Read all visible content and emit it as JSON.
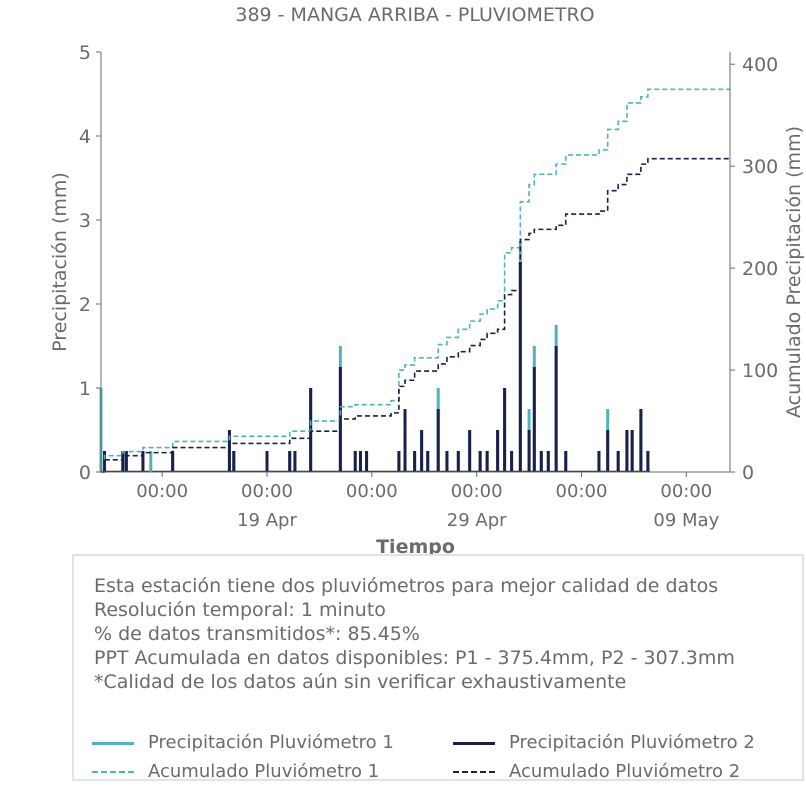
{
  "title": "389 - MANGA ARRIBA - PLUVIOMETRO",
  "colors": {
    "p1": "#4db3bf",
    "p2": "#1c1f4a",
    "axis": "#6b6b6b",
    "text": "#6b6b6b"
  },
  "info": {
    "lines": [
      "Esta estación tiene dos pluviómetros para mejor calidad de datos",
      "Resolución temporal: 1 minuto",
      "% de datos transmitidos*: 85.45%",
      "PPT Acumulada en datos disponibles: P1 - 375.4mm, P2 - 307.3mm",
      "*Calidad de los datos aún sin verificar exhaustivamente"
    ]
  },
  "legend": {
    "items": [
      {
        "label": "Precipitación Pluviómetro 1",
        "color": "#4db3bf",
        "style": "solid"
      },
      {
        "label": "Precipitación Pluviómetro 2",
        "color": "#1c1f4a",
        "style": "solid"
      },
      {
        "label": "Acumulado Pluviómetro 1",
        "color": "#4db3bf",
        "style": "dashed"
      },
      {
        "label": "Acumulado Pluviómetro 2",
        "color": "#1c1f4a",
        "style": "dashed"
      }
    ]
  },
  "chart_data": {
    "type": "line",
    "title": "389 - MANGA ARRIBA - PLUVIOMETRO",
    "xlabel": "Tiempo",
    "ylabel": "Precipitación (mm)",
    "y2label": "Acumulado Precipitación (mm)",
    "xlim": [
      "2026-04-11T02:00",
      "2026-05-11T02:00"
    ],
    "ylim": [
      0,
      5
    ],
    "y2lim": [
      0,
      412
    ],
    "x_ticks": [
      {
        "at": "2026-04-14T00:00",
        "major": "00:00",
        "minor": ""
      },
      {
        "at": "2026-04-19T00:00",
        "major": "00:00",
        "minor": "19 Apr"
      },
      {
        "at": "2026-04-24T00:00",
        "major": "00:00",
        "minor": ""
      },
      {
        "at": "2026-04-29T00:00",
        "major": "00:00",
        "minor": "29 Apr"
      },
      {
        "at": "2026-05-04T00:00",
        "major": "00:00",
        "minor": ""
      },
      {
        "at": "2026-05-09T00:00",
        "major": "00:00",
        "minor": "09 May"
      }
    ],
    "y_ticks": [
      0,
      1,
      2,
      3,
      4,
      5
    ],
    "y2_ticks": [
      0,
      100,
      200,
      300,
      400
    ],
    "grid": false,
    "legend_position": "bottom",
    "series": [
      {
        "name": "Precipitación Pluviómetro 1",
        "axis": "left",
        "style": "bars",
        "points": [
          [
            "2026-04-11T02:00",
            1.0
          ],
          [
            "2026-04-11T06:00",
            0.25
          ],
          [
            "2026-04-12T03:00",
            0.25
          ],
          [
            "2026-04-12T07:00",
            0.25
          ],
          [
            "2026-04-13T02:00",
            0.25
          ],
          [
            "2026-04-13T11:00",
            0.25
          ],
          [
            "2026-04-14T12:00",
            0.25
          ],
          [
            "2026-04-17T05:00",
            0.5
          ],
          [
            "2026-04-17T10:00",
            0.25
          ],
          [
            "2026-04-19T00:00",
            0.25
          ],
          [
            "2026-04-20T02:00",
            0.25
          ],
          [
            "2026-04-20T08:00",
            0.25
          ],
          [
            "2026-04-21T02:00",
            1.0
          ],
          [
            "2026-04-22T12:00",
            1.5
          ],
          [
            "2026-04-23T05:00",
            0.25
          ],
          [
            "2026-04-23T11:00",
            0.25
          ],
          [
            "2026-04-23T18:00",
            0.25
          ],
          [
            "2026-04-25T07:00",
            0.25
          ],
          [
            "2026-04-25T14:00",
            0.5
          ],
          [
            "2026-04-26T01:00",
            0.25
          ],
          [
            "2026-04-26T09:00",
            0.5
          ],
          [
            "2026-04-26T16:00",
            0.25
          ],
          [
            "2026-04-27T04:00",
            1.0
          ],
          [
            "2026-04-27T14:00",
            0.25
          ],
          [
            "2026-04-28T03:00",
            0.25
          ],
          [
            "2026-04-28T16:00",
            0.5
          ],
          [
            "2026-04-29T04:00",
            0.25
          ],
          [
            "2026-04-29T12:00",
            0.25
          ],
          [
            "2026-04-30T00:00",
            0.5
          ],
          [
            "2026-04-30T08:00",
            1.0
          ],
          [
            "2026-04-30T16:00",
            0.25
          ],
          [
            "2026-05-01T02:00",
            2.75
          ],
          [
            "2026-05-01T12:00",
            0.75
          ],
          [
            "2026-05-01T18:00",
            1.5
          ],
          [
            "2026-05-02T02:00",
            0.25
          ],
          [
            "2026-05-02T10:00",
            0.25
          ],
          [
            "2026-05-02T19:00",
            1.75
          ],
          [
            "2026-05-03T06:00",
            0.25
          ],
          [
            "2026-05-04T20:00",
            0.25
          ],
          [
            "2026-05-05T06:00",
            0.75
          ],
          [
            "2026-05-05T18:00",
            0.25
          ],
          [
            "2026-05-06T04:00",
            0.5
          ],
          [
            "2026-05-06T10:00",
            0.5
          ],
          [
            "2026-05-06T20:00",
            0.75
          ],
          [
            "2026-05-07T04:00",
            0.25
          ]
        ]
      },
      {
        "name": "Precipitación Pluviómetro 2",
        "axis": "left",
        "style": "bars",
        "points": [
          [
            "2026-04-11T06:00",
            0.25
          ],
          [
            "2026-04-12T03:00",
            0.25
          ],
          [
            "2026-04-12T07:00",
            0.25
          ],
          [
            "2026-04-13T02:00",
            0.25
          ],
          [
            "2026-04-14T12:00",
            0.25
          ],
          [
            "2026-04-17T05:00",
            0.5
          ],
          [
            "2026-04-17T10:00",
            0.25
          ],
          [
            "2026-04-19T00:00",
            0.25
          ],
          [
            "2026-04-20T02:00",
            0.25
          ],
          [
            "2026-04-20T08:00",
            0.25
          ],
          [
            "2026-04-21T02:00",
            1.0
          ],
          [
            "2026-04-22T12:00",
            1.25
          ],
          [
            "2026-04-23T05:00",
            0.25
          ],
          [
            "2026-04-23T11:00",
            0.25
          ],
          [
            "2026-04-23T18:00",
            0.25
          ],
          [
            "2026-04-25T07:00",
            0.25
          ],
          [
            "2026-04-25T14:00",
            0.75
          ],
          [
            "2026-04-26T01:00",
            0.25
          ],
          [
            "2026-04-26T09:00",
            0.5
          ],
          [
            "2026-04-26T16:00",
            0.25
          ],
          [
            "2026-04-27T04:00",
            0.75
          ],
          [
            "2026-04-27T14:00",
            0.25
          ],
          [
            "2026-04-28T03:00",
            0.25
          ],
          [
            "2026-04-28T16:00",
            0.5
          ],
          [
            "2026-04-29T04:00",
            0.25
          ],
          [
            "2026-04-29T12:00",
            0.25
          ],
          [
            "2026-04-30T00:00",
            0.5
          ],
          [
            "2026-04-30T08:00",
            1.0
          ],
          [
            "2026-04-30T16:00",
            0.25
          ],
          [
            "2026-05-01T02:00",
            2.5
          ],
          [
            "2026-05-01T12:00",
            0.5
          ],
          [
            "2026-05-01T18:00",
            1.25
          ],
          [
            "2026-05-02T02:00",
            0.25
          ],
          [
            "2026-05-02T10:00",
            0.25
          ],
          [
            "2026-05-02T19:00",
            1.5
          ],
          [
            "2026-05-03T06:00",
            0.25
          ],
          [
            "2026-05-04T20:00",
            0.25
          ],
          [
            "2026-05-05T06:00",
            0.5
          ],
          [
            "2026-05-05T18:00",
            0.25
          ],
          [
            "2026-05-06T04:00",
            0.5
          ],
          [
            "2026-05-06T10:00",
            0.5
          ],
          [
            "2026-05-06T20:00",
            0.75
          ],
          [
            "2026-05-07T04:00",
            0.25
          ]
        ]
      },
      {
        "name": "Acumulado Pluviómetro 1",
        "axis": "right",
        "style": "dashed-step",
        "points": [
          [
            "2026-04-11T02:00",
            0
          ],
          [
            "2026-04-11T06:00",
            16
          ],
          [
            "2026-04-12T03:00",
            20
          ],
          [
            "2026-04-13T02:00",
            24
          ],
          [
            "2026-04-14T12:00",
            30
          ],
          [
            "2026-04-17T05:00",
            35
          ],
          [
            "2026-04-20T02:00",
            40
          ],
          [
            "2026-04-21T02:00",
            50
          ],
          [
            "2026-04-22T12:00",
            64
          ],
          [
            "2026-04-23T05:00",
            66
          ],
          [
            "2026-04-24T22:00",
            70
          ],
          [
            "2026-04-25T07:00",
            100
          ],
          [
            "2026-04-25T14:00",
            105
          ],
          [
            "2026-04-26T01:00",
            112
          ],
          [
            "2026-04-27T04:00",
            125
          ],
          [
            "2026-04-27T14:00",
            132
          ],
          [
            "2026-04-28T03:00",
            140
          ],
          [
            "2026-04-28T16:00",
            148
          ],
          [
            "2026-04-29T04:00",
            155
          ],
          [
            "2026-04-29T12:00",
            160
          ],
          [
            "2026-04-30T00:00",
            168
          ],
          [
            "2026-04-30T08:00",
            215
          ],
          [
            "2026-04-30T16:00",
            220
          ],
          [
            "2026-05-01T02:00",
            265
          ],
          [
            "2026-05-01T12:00",
            282
          ],
          [
            "2026-05-01T18:00",
            292
          ],
          [
            "2026-05-02T19:00",
            302
          ],
          [
            "2026-05-03T06:00",
            311
          ],
          [
            "2026-05-04T20:00",
            316
          ],
          [
            "2026-05-05T06:00",
            336
          ],
          [
            "2026-05-05T18:00",
            344
          ],
          [
            "2026-05-06T04:00",
            362
          ],
          [
            "2026-05-06T20:00",
            368
          ],
          [
            "2026-05-07T04:00",
            375.4
          ],
          [
            "2026-05-11T02:00",
            375.4
          ]
        ]
      },
      {
        "name": "Acumulado Pluviómetro 2",
        "axis": "right",
        "style": "dashed-step",
        "points": [
          [
            "2026-04-11T02:00",
            0
          ],
          [
            "2026-04-11T06:00",
            12
          ],
          [
            "2026-04-12T03:00",
            16
          ],
          [
            "2026-04-13T02:00",
            19
          ],
          [
            "2026-04-14T12:00",
            24
          ],
          [
            "2026-04-17T05:00",
            28
          ],
          [
            "2026-04-20T02:00",
            33
          ],
          [
            "2026-04-21T02:00",
            40
          ],
          [
            "2026-04-22T12:00",
            52
          ],
          [
            "2026-04-23T05:00",
            55
          ],
          [
            "2026-04-24T22:00",
            58
          ],
          [
            "2026-04-25T07:00",
            84
          ],
          [
            "2026-04-25T14:00",
            90
          ],
          [
            "2026-04-26T01:00",
            99
          ],
          [
            "2026-04-27T04:00",
            106
          ],
          [
            "2026-04-27T14:00",
            113
          ],
          [
            "2026-04-28T03:00",
            118
          ],
          [
            "2026-04-28T16:00",
            124
          ],
          [
            "2026-04-29T04:00",
            130
          ],
          [
            "2026-04-29T12:00",
            136
          ],
          [
            "2026-04-30T00:00",
            140
          ],
          [
            "2026-04-30T08:00",
            174
          ],
          [
            "2026-04-30T16:00",
            178
          ],
          [
            "2026-05-01T02:00",
            228
          ],
          [
            "2026-05-01T12:00",
            234
          ],
          [
            "2026-05-01T18:00",
            238
          ],
          [
            "2026-05-02T19:00",
            242
          ],
          [
            "2026-05-03T06:00",
            253
          ],
          [
            "2026-05-04T20:00",
            256
          ],
          [
            "2026-05-05T06:00",
            276
          ],
          [
            "2026-05-05T18:00",
            282
          ],
          [
            "2026-05-06T04:00",
            292
          ],
          [
            "2026-05-06T20:00",
            302
          ],
          [
            "2026-05-07T04:00",
            307.3
          ],
          [
            "2026-05-11T02:00",
            307.3
          ]
        ]
      }
    ]
  }
}
